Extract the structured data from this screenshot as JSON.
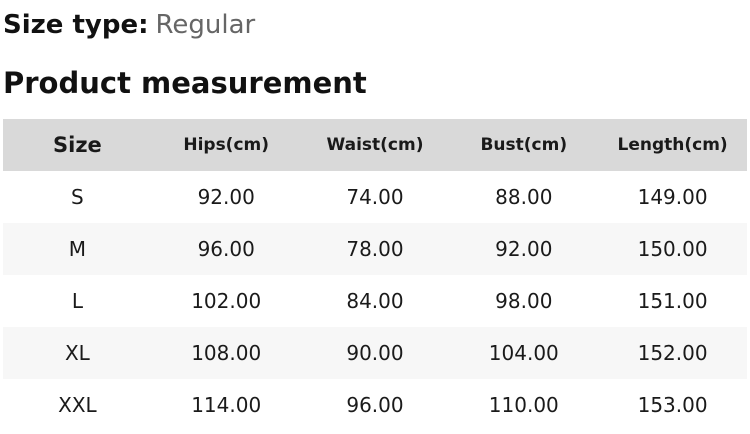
{
  "size_type": {
    "label": "Size type:",
    "value": "Regular"
  },
  "section_title": "Product measurement",
  "table": {
    "columns": [
      "Size",
      "Hips(cm)",
      "Waist(cm)",
      "Bust(cm)",
      "Length(cm)"
    ],
    "rows": [
      {
        "size": "S",
        "hips": "92.00",
        "waist": "74.00",
        "bust": "88.00",
        "length": "149.00"
      },
      {
        "size": "M",
        "hips": "96.00",
        "waist": "78.00",
        "bust": "92.00",
        "length": "150.00"
      },
      {
        "size": "L",
        "hips": "102.00",
        "waist": "84.00",
        "bust": "98.00",
        "length": "151.00"
      },
      {
        "size": "XL",
        "hips": "108.00",
        "waist": "90.00",
        "bust": "104.00",
        "length": "152.00"
      },
      {
        "size": "XXL",
        "hips": "114.00",
        "waist": "96.00",
        "bust": "110.00",
        "length": "153.00"
      }
    ]
  },
  "colors": {
    "header_bg": "#d9d9d9",
    "alt_row_bg": "#f7f7f7",
    "muted_text": "#666666",
    "text": "#1a1a1a"
  }
}
